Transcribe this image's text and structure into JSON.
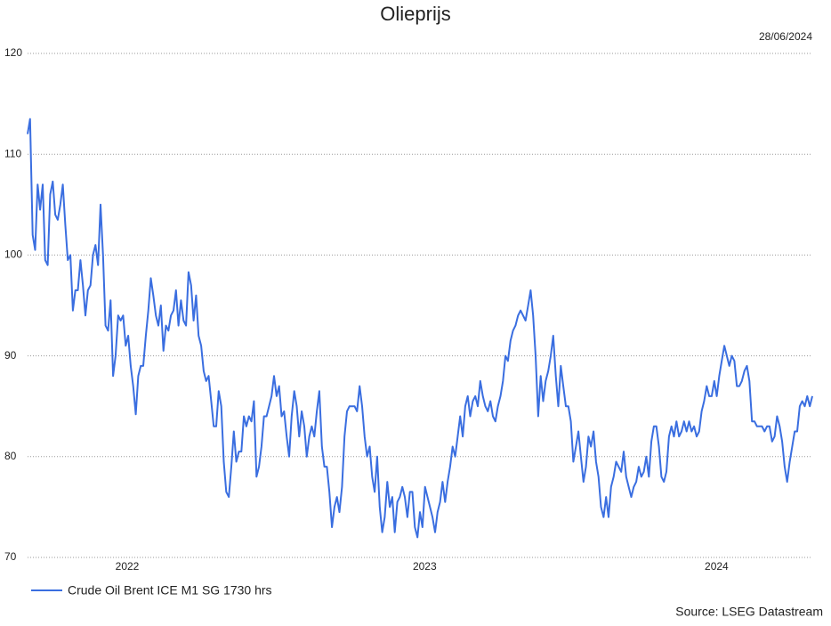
{
  "chart_data": {
    "type": "line",
    "title": "Olieprijs",
    "date": "28/06/2024",
    "source": "Source: LSEG Datastream",
    "x_labels": [
      "2022",
      "2023",
      "2024"
    ],
    "ylim": [
      70,
      120
    ],
    "yticks": [
      70,
      80,
      90,
      100,
      110,
      120
    ],
    "grid": true,
    "legend": "bottom-left",
    "series": [
      {
        "name": "Crude Oil Brent ICE M1 SG 1730 hrs",
        "color": "#3a6ee0",
        "values": [
          112,
          113.5,
          102,
          100.5,
          107,
          104.5,
          107,
          99.5,
          99,
          106,
          107.3,
          104,
          103.5,
          105,
          107,
          103,
          99.5,
          100,
          94.5,
          96.5,
          96.5,
          99.5,
          97,
          94,
          96.5,
          97,
          100,
          101,
          99,
          105,
          100,
          93,
          92.5,
          95.5,
          88,
          90,
          94,
          93.5,
          94,
          91,
          92,
          89,
          87,
          84.2,
          88,
          89,
          89,
          92,
          94.5,
          97.7,
          96,
          94,
          93,
          95,
          90.5,
          93,
          92.5,
          94,
          94.5,
          96.5,
          93,
          95.5,
          93.5,
          93,
          98.3,
          97,
          93.5,
          96,
          92,
          91,
          88.5,
          87.5,
          88,
          85.5,
          83,
          83,
          86.5,
          85,
          79.5,
          76.5,
          76,
          79,
          82.5,
          79.5,
          80.5,
          80.5,
          84,
          83,
          84,
          83.5,
          85.5,
          78,
          79,
          81,
          84,
          84,
          85,
          86,
          88,
          86,
          87,
          84,
          84.5,
          82,
          80,
          84,
          86.5,
          85,
          82,
          84.5,
          83,
          80,
          82,
          83,
          82,
          84.5,
          86.5,
          81,
          79,
          79,
          76.5,
          73,
          75,
          76,
          74.5,
          77,
          82,
          84.5,
          85,
          85,
          85,
          84.5,
          87,
          85,
          82,
          80,
          81,
          78,
          76.5,
          80,
          75,
          72.5,
          74,
          77.5,
          75,
          76,
          72.5,
          75.5,
          76,
          77,
          76,
          74,
          76.5,
          76.5,
          73,
          72,
          74.5,
          73,
          77,
          76,
          75,
          74,
          72.5,
          74.5,
          75.5,
          77.5,
          75.5,
          77.5,
          79,
          81,
          80,
          82,
          84,
          82,
          85,
          86,
          84,
          85.5,
          86,
          85,
          87.5,
          86,
          85,
          84.5,
          85.5,
          84,
          83.5,
          85,
          86,
          87.5,
          90,
          89.5,
          91.5,
          92.5,
          93,
          94,
          94.5,
          94,
          93.5,
          95,
          96.5,
          94,
          90,
          84,
          88,
          85.5,
          87.5,
          88.5,
          90,
          92,
          88,
          85,
          89,
          87,
          85,
          85,
          83.5,
          79.5,
          81,
          82.5,
          80,
          77.5,
          79,
          82,
          81,
          82.5,
          79.5,
          78,
          75,
          74,
          76,
          74,
          77,
          78,
          79.5,
          79,
          78.5,
          80.5,
          78,
          77,
          76,
          77,
          77.5,
          79,
          78,
          78.5,
          80,
          78,
          81.5,
          83,
          83,
          81,
          78,
          77.5,
          78.5,
          82,
          83,
          82,
          83.5,
          82,
          82.5,
          83.5,
          82.5,
          83.5,
          82.5,
          83,
          82,
          82.5,
          84.5,
          85.5,
          87,
          86,
          86,
          87.5,
          86,
          88,
          89.5,
          91,
          90,
          89,
          90,
          89.5,
          87,
          87,
          87.5,
          88.5,
          89,
          87.5,
          83.5,
          83.5,
          83,
          83,
          83,
          82.5,
          83,
          83,
          81.5,
          82,
          84,
          83,
          81.5,
          79,
          77.5,
          79.5,
          81,
          82.5,
          82.5,
          85,
          85.5,
          85,
          86,
          85,
          86
        ]
      }
    ]
  }
}
